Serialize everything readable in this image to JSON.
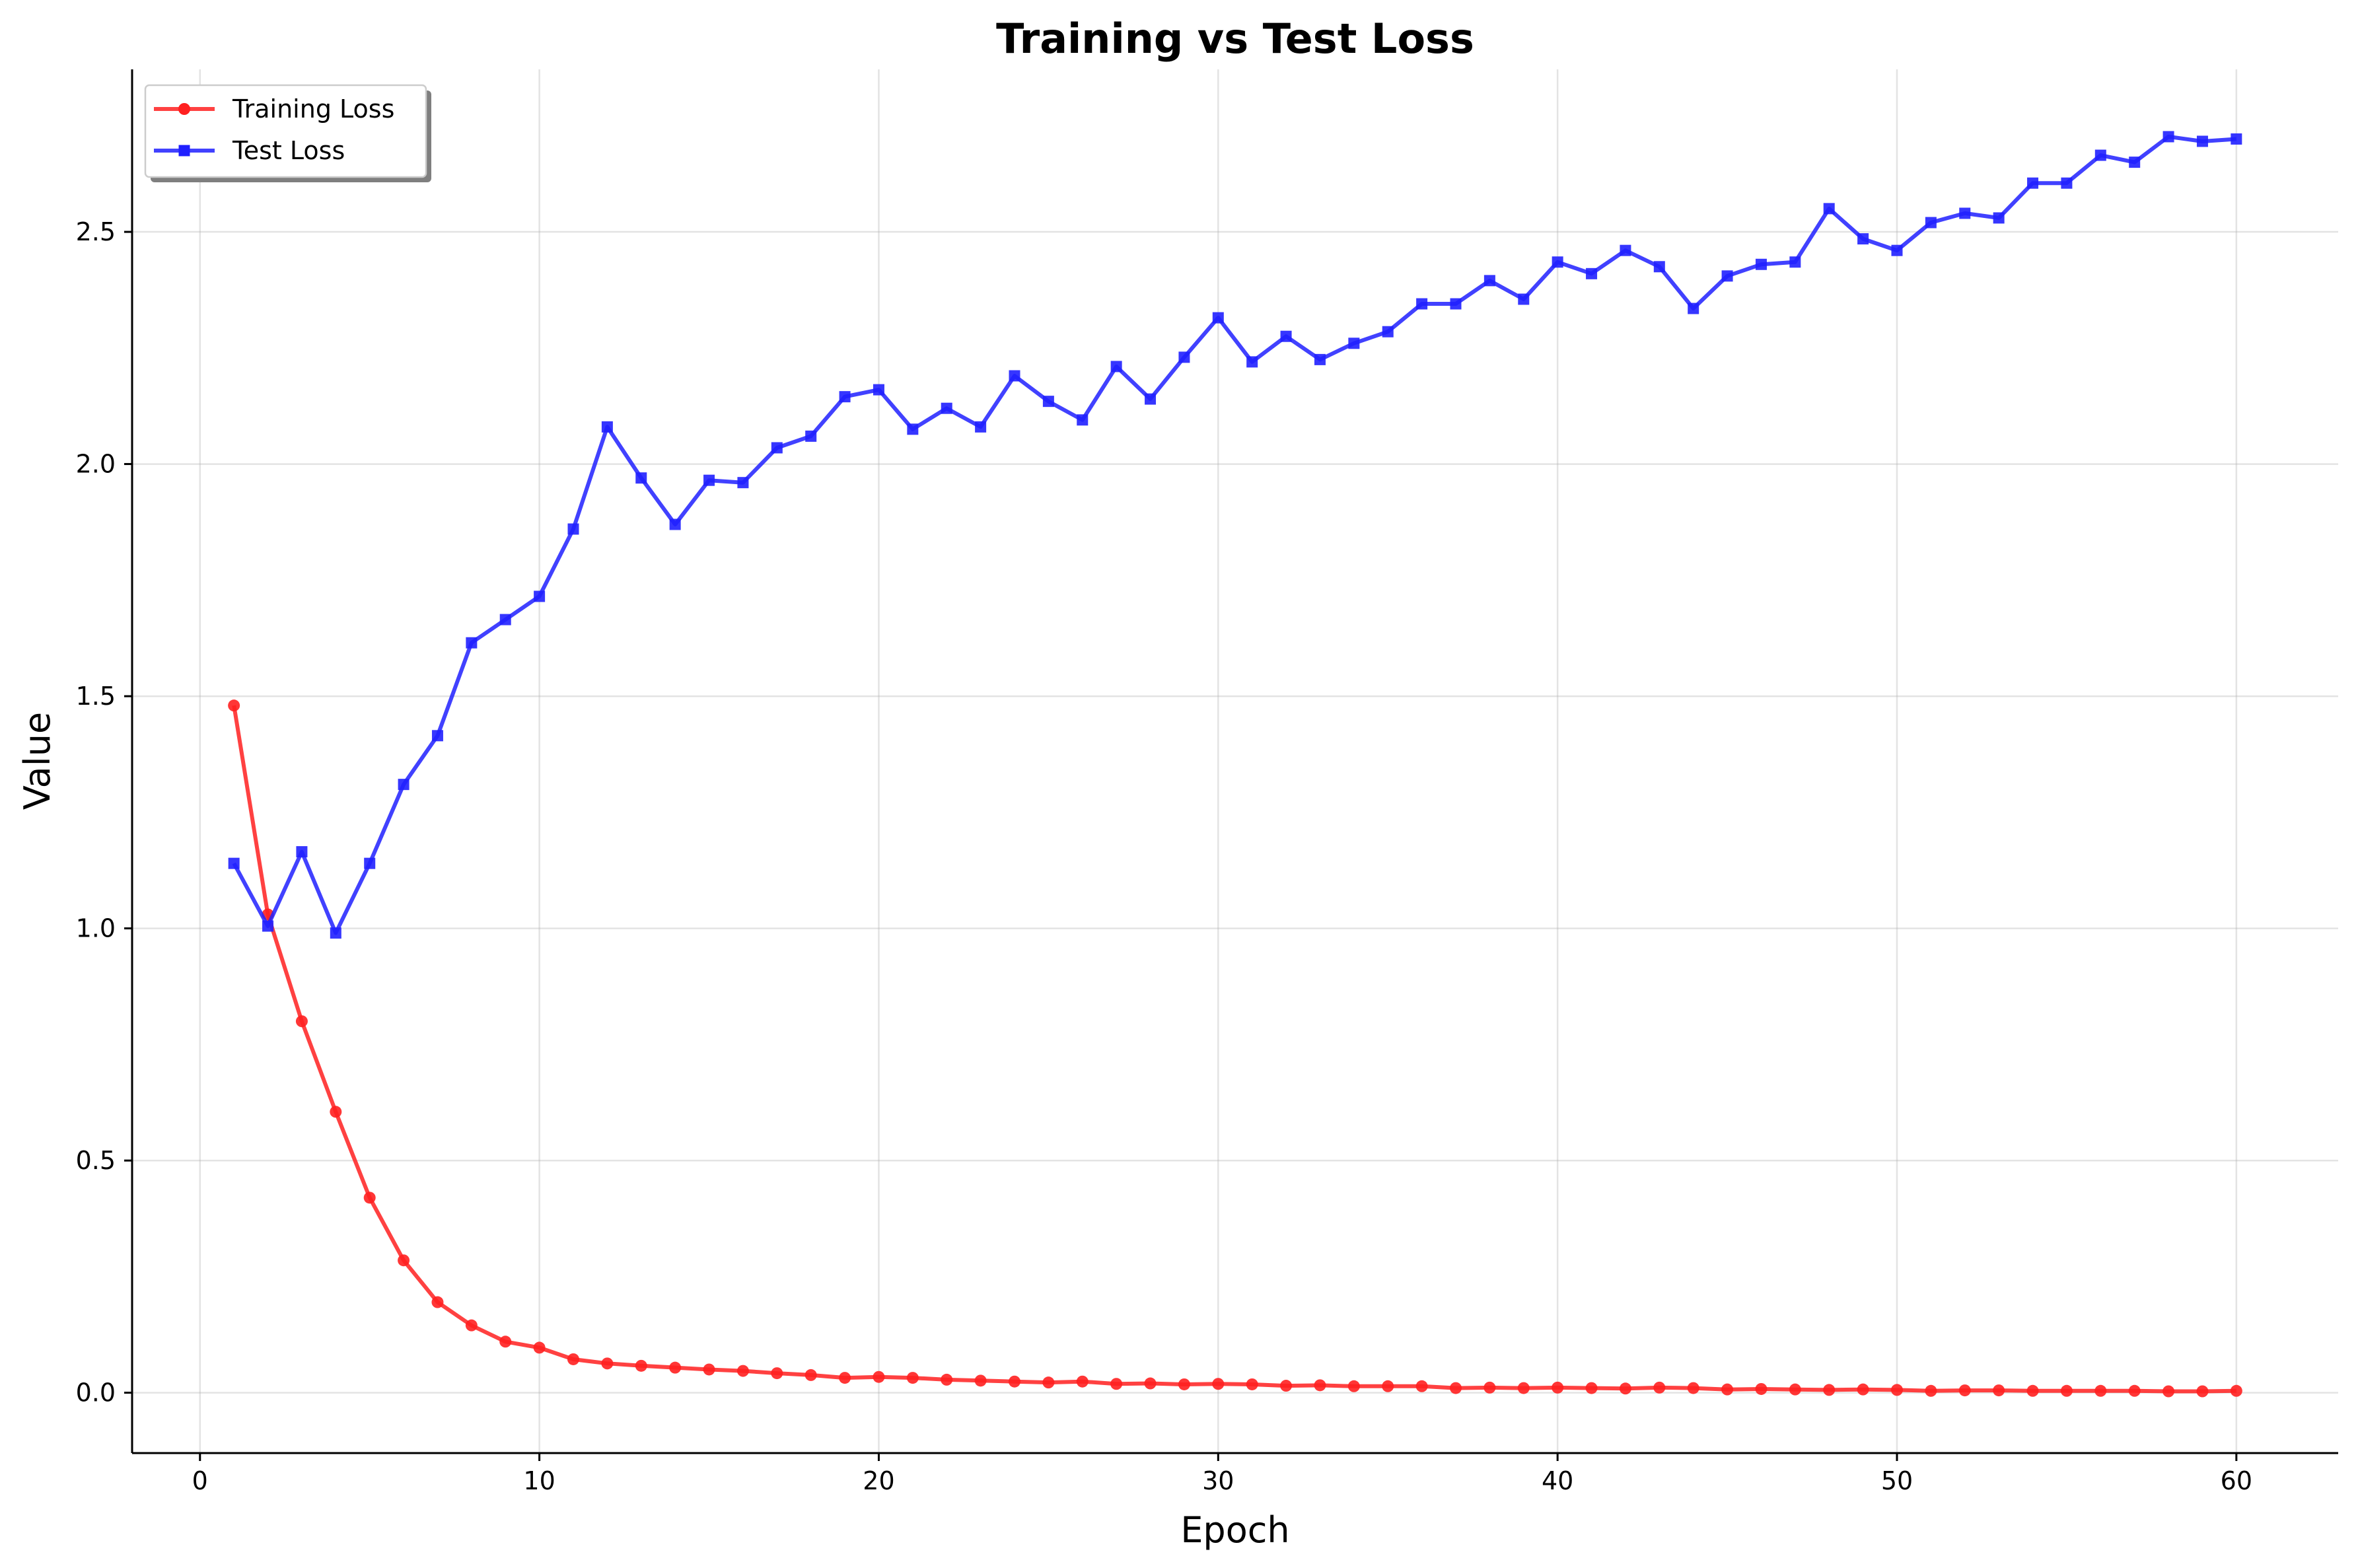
{
  "chart_data": {
    "type": "line",
    "title": "Training vs Test Loss",
    "xlabel": "Epoch",
    "ylabel": "Value",
    "xlim": [
      -2,
      63
    ],
    "ylim": [
      -0.13,
      2.85
    ],
    "xticks": [
      0,
      10,
      20,
      30,
      40,
      50,
      60
    ],
    "yticks": [
      0.0,
      0.5,
      1.0,
      1.5,
      2.0,
      2.5
    ],
    "grid": true,
    "legend_position": "top-left",
    "x": [
      1,
      2,
      3,
      4,
      5,
      6,
      7,
      8,
      9,
      10,
      11,
      12,
      13,
      14,
      15,
      16,
      17,
      18,
      19,
      20,
      21,
      22,
      23,
      24,
      25,
      26,
      27,
      28,
      29,
      30,
      31,
      32,
      33,
      34,
      35,
      36,
      37,
      38,
      39,
      40,
      41,
      42,
      43,
      44,
      45,
      46,
      47,
      48,
      49,
      50,
      51,
      52,
      53,
      54,
      55,
      56,
      57,
      58,
      59,
      60
    ],
    "series": [
      {
        "name": "Training Loss",
        "color": "#ff2020",
        "marker": "circle",
        "values": [
          1.48,
          1.03,
          0.8,
          0.605,
          0.42,
          0.285,
          0.195,
          0.145,
          0.11,
          0.097,
          0.072,
          0.063,
          0.058,
          0.054,
          0.05,
          0.047,
          0.042,
          0.038,
          0.032,
          0.034,
          0.032,
          0.028,
          0.026,
          0.024,
          0.022,
          0.024,
          0.019,
          0.02,
          0.018,
          0.019,
          0.018,
          0.015,
          0.016,
          0.014,
          0.014,
          0.014,
          0.01,
          0.011,
          0.01,
          0.011,
          0.01,
          0.009,
          0.011,
          0.01,
          0.007,
          0.008,
          0.007,
          0.006,
          0.007,
          0.006,
          0.004,
          0.005,
          0.005,
          0.004,
          0.004,
          0.004,
          0.004,
          0.003,
          0.003,
          0.004
        ]
      },
      {
        "name": "Test Loss",
        "color": "#2020ff",
        "marker": "square",
        "values": [
          1.14,
          1.005,
          1.165,
          0.99,
          1.14,
          1.31,
          1.415,
          1.615,
          1.665,
          1.715,
          1.86,
          2.08,
          1.97,
          1.87,
          1.965,
          1.96,
          2.035,
          2.06,
          2.145,
          2.16,
          2.075,
          2.12,
          2.08,
          2.19,
          2.135,
          2.095,
          2.21,
          2.14,
          2.23,
          2.315,
          2.22,
          2.275,
          2.225,
          2.26,
          2.285,
          2.345,
          2.345,
          2.395,
          2.355,
          2.435,
          2.41,
          2.46,
          2.425,
          2.335,
          2.405,
          2.43,
          2.435,
          2.55,
          2.485,
          2.46,
          2.52,
          2.54,
          2.53,
          2.605,
          2.605,
          2.665,
          2.65,
          2.705,
          2.695,
          2.7
        ]
      }
    ]
  }
}
